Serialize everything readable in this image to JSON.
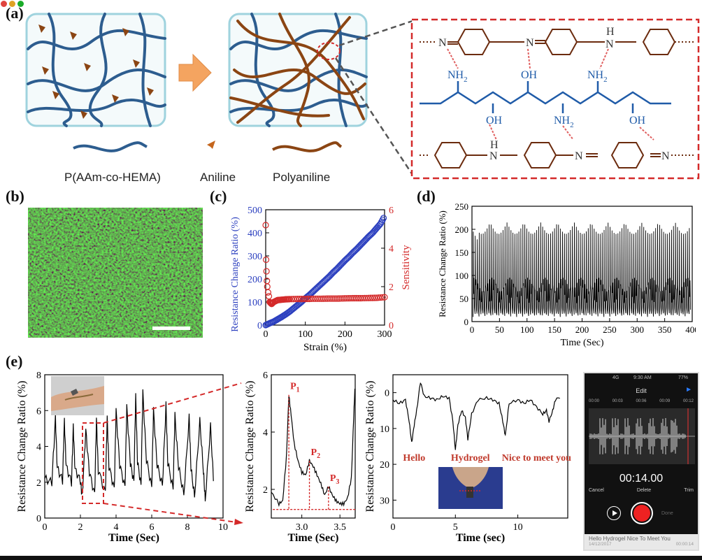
{
  "panels": {
    "a": "(a)",
    "b": "(b)",
    "c": "(c)",
    "d": "(d)",
    "e": "(e)"
  },
  "legend_a": {
    "copolymer": "P(AAm-co-HEMA)",
    "monomer": "Aniline",
    "polymer": "Polyaniline"
  },
  "chem": {
    "N": "N",
    "H": "H",
    "NH2": "NH",
    "OH": "OH",
    "sub2": "2"
  },
  "colors": {
    "blue_chain": "#1f5ba8",
    "brown_chain": "#8b4513",
    "red_dash": "#d42a2a",
    "green_micro": "#3aa63a"
  },
  "panel_c": {
    "xlabel": "Strain (%)",
    "ylabel_left": "Resistance Change Ratio (%)",
    "ylabel_right": "Sensitivity",
    "x_ticks": [
      "0",
      "100",
      "200",
      "300"
    ],
    "y_left_ticks": [
      "0",
      "100",
      "200",
      "300",
      "400",
      "500"
    ],
    "y_right_ticks": [
      "0",
      "2",
      "4",
      "6"
    ]
  },
  "panel_d": {
    "xlabel": "Time (Sec)",
    "ylabel": "Resistance Change Ratio (%)",
    "x_ticks": [
      "0",
      "50",
      "100",
      "150",
      "200",
      "250",
      "300",
      "350",
      "400"
    ],
    "y_ticks": [
      "0",
      "50",
      "100",
      "150",
      "200",
      "250"
    ]
  },
  "panel_e1": {
    "xlabel": "Time (Sec)",
    "ylabel": "Resistance Change Ratio (%)",
    "x_ticks": [
      "0",
      "2",
      "4",
      "6",
      "8",
      "10"
    ],
    "y_ticks": [
      "0",
      "2",
      "4",
      "6",
      "8"
    ]
  },
  "panel_e2": {
    "xlabel": "Time (Sec)",
    "ylabel": "Resistance Change Ratio (%)",
    "x_ticks": [
      "3.0",
      "3.5"
    ],
    "y_ticks": [
      "2",
      "4",
      "6"
    ],
    "peaks": [
      "P",
      "P",
      "P"
    ],
    "peak_subs": [
      "1",
      "2",
      "3"
    ]
  },
  "panel_e3": {
    "xlabel": "Time (sec)",
    "ylabel": "Resistance Change Ratio (%)",
    "x_ticks": [
      "0",
      "5",
      "10"
    ],
    "y_ticks": [
      "0",
      "10",
      "20",
      "30"
    ],
    "words": [
      "Hello",
      "Hydrogel",
      "Nice to meet you"
    ]
  },
  "phone": {
    "status_left": "",
    "status_mid": "9:30 AM",
    "status_net": "4G",
    "status_batt": "77%",
    "title": "Edit",
    "timeline": [
      "00:00",
      "00:03",
      "00:06",
      "00:09",
      "00:12"
    ],
    "timer": "00:14.00",
    "cancel": "Cancel",
    "delete": "Delete",
    "trim": "Trim",
    "done": "Done",
    "caption_title": "Hello Hydrogel Nice To Meet You",
    "caption_date": "14/12/2017",
    "caption_dur": "00:00:14"
  },
  "chart_data": [
    {
      "id": "c",
      "type": "scatter",
      "xlabel": "Strain (%)",
      "ylabel": "Resistance Change Ratio (%)",
      "y2label": "Sensitivity",
      "xlim": [
        0,
        300
      ],
      "ylim": [
        0,
        500
      ],
      "y2lim": [
        0,
        6
      ],
      "series": [
        {
          "name": "",
          "axis": "left",
          "color": "#2b3fbf",
          "x": [
            0,
            10,
            20,
            30,
            40,
            50,
            60,
            70,
            80,
            90,
            100,
            110,
            120,
            130,
            140,
            150,
            160,
            170,
            180,
            190,
            200,
            210,
            220,
            230,
            240,
            250,
            260,
            270,
            280,
            290,
            300
          ],
          "y": [
            0,
            8,
            15,
            25,
            35,
            46,
            58,
            72,
            86,
            100,
            116,
            130,
            146,
            162,
            178,
            194,
            210,
            228,
            244,
            262,
            280,
            296,
            314,
            330,
            348,
            366,
            384,
            400,
            420,
            440,
            472
          ]
        },
        {
          "name": "",
          "axis": "right",
          "color": "#d42a2a",
          "x": [
            0,
            1,
            2,
            3,
            4,
            6,
            8,
            10,
            15,
            20,
            30,
            40,
            50,
            60,
            80,
            100,
            120,
            140,
            160,
            180,
            200,
            220,
            240,
            260,
            280,
            300
          ],
          "y": [
            5.2,
            3.4,
            2.8,
            2.3,
            2.0,
            1.7,
            1.5,
            1.2,
            1.1,
            1.2,
            1.3,
            1.32,
            1.34,
            1.35,
            1.36,
            1.36,
            1.37,
            1.37,
            1.38,
            1.38,
            1.39,
            1.4,
            1.4,
            1.41,
            1.42,
            1.45
          ]
        }
      ]
    },
    {
      "id": "d",
      "type": "line",
      "xlabel": "Time (Sec)",
      "ylabel": "Resistance Change Ratio (%)",
      "xlim": [
        0,
        400
      ],
      "ylim": [
        0,
        250
      ],
      "series": [
        {
          "name": "",
          "cycles": 110,
          "peak_approx": 215,
          "period_sec": 3.6
        }
      ]
    },
    {
      "id": "e1",
      "type": "line",
      "xlabel": "Time (Sec)",
      "ylabel": "Resistance Change Ratio (%)",
      "xlim": [
        0,
        10
      ],
      "ylim": [
        0,
        8
      ],
      "series": [
        {
          "name": "",
          "x": [
            0,
            0.4,
            0.6,
            0.7,
            1.0,
            1.1,
            1.2,
            1.5,
            1.6,
            1.7,
            2.0,
            2.1,
            2.3,
            2.5,
            2.8,
            2.9,
            3.0,
            3.4,
            3.5,
            3.6,
            3.9,
            4.0,
            4.2,
            4.5,
            4.6,
            4.8,
            5.0,
            5.1,
            5.2,
            5.4,
            5.5,
            5.7,
            6.0,
            6.1,
            6.3,
            6.6,
            6.8,
            6.9,
            7.2,
            7.3,
            7.5,
            7.8,
            8.1,
            8.2,
            8.4,
            8.7,
            8.9,
            9.0,
            9.3,
            9.5
          ],
          "y": [
            2.2,
            2.0,
            5.6,
            2.8,
            2.1,
            5.4,
            2.9,
            2.0,
            5.1,
            2.7,
            2.1,
            1.2,
            4.9,
            2.6,
            1.3,
            5.5,
            2.7,
            1.4,
            5.6,
            2.9,
            1.6,
            6.0,
            3.0,
            1.7,
            6.2,
            3.1,
            2.0,
            6.8,
            3.2,
            1.8,
            7.0,
            3.3,
            1.7,
            6.0,
            3.0,
            1.8,
            6.3,
            3.1,
            1.6,
            5.7,
            2.9,
            1.3,
            5.6,
            2.8,
            1.2,
            5.4,
            2.6,
            1.0,
            5.1,
            1.4
          ]
        }
      ]
    },
    {
      "id": "e2",
      "type": "line",
      "xlabel": "Time (Sec)",
      "ylabel": "Resistance Change Ratio (%)",
      "xlim": [
        2.6,
        3.7
      ],
      "ylim": [
        1,
        6
      ],
      "series": [
        {
          "name": "",
          "x": [
            2.6,
            2.7,
            2.75,
            2.8,
            2.83,
            2.86,
            2.9,
            2.95,
            3.0,
            3.05,
            3.1,
            3.15,
            3.2,
            3.25,
            3.3,
            3.35,
            3.4,
            3.45,
            3.5,
            3.55,
            3.6,
            3.65,
            3.68,
            3.7
          ],
          "y": [
            1.9,
            1.5,
            1.6,
            3.2,
            5.3,
            4.6,
            3.6,
            3.0,
            2.6,
            2.5,
            3.0,
            2.8,
            2.5,
            2.2,
            1.8,
            2.1,
            1.8,
            1.6,
            1.5,
            1.5,
            1.7,
            2.4,
            4.5,
            5.8
          ]
        }
      ]
    },
    {
      "id": "e3",
      "type": "line",
      "xlabel": "Time (sec)",
      "ylabel": "Resistance Change Ratio (%)",
      "xlim": [
        0,
        14
      ],
      "ylim": [
        35,
        -5
      ],
      "series": [
        {
          "name": "",
          "x": [
            0,
            0.5,
            1.0,
            1.3,
            1.5,
            1.7,
            1.9,
            2.2,
            2.5,
            3,
            3.5,
            4,
            4.5,
            4.8,
            5.0,
            5.2,
            5.5,
            5.8,
            6.0,
            6.3,
            6.8,
            7.5,
            8,
            8.5,
            8.8,
            9.0,
            9.3,
            10,
            10.5,
            11,
            11.5,
            12,
            12.3,
            12.5,
            12.8,
            13,
            13.5
          ],
          "y": [
            2,
            3,
            2,
            8,
            14,
            9,
            5,
            -3,
            1,
            1.5,
            2,
            1,
            1.5,
            8,
            16,
            9,
            5,
            7,
            13,
            6,
            2,
            1.5,
            2,
            3,
            8,
            12,
            3,
            2,
            3,
            2,
            4,
            6,
            5,
            8,
            5,
            2,
            1
          ]
        }
      ]
    }
  ]
}
